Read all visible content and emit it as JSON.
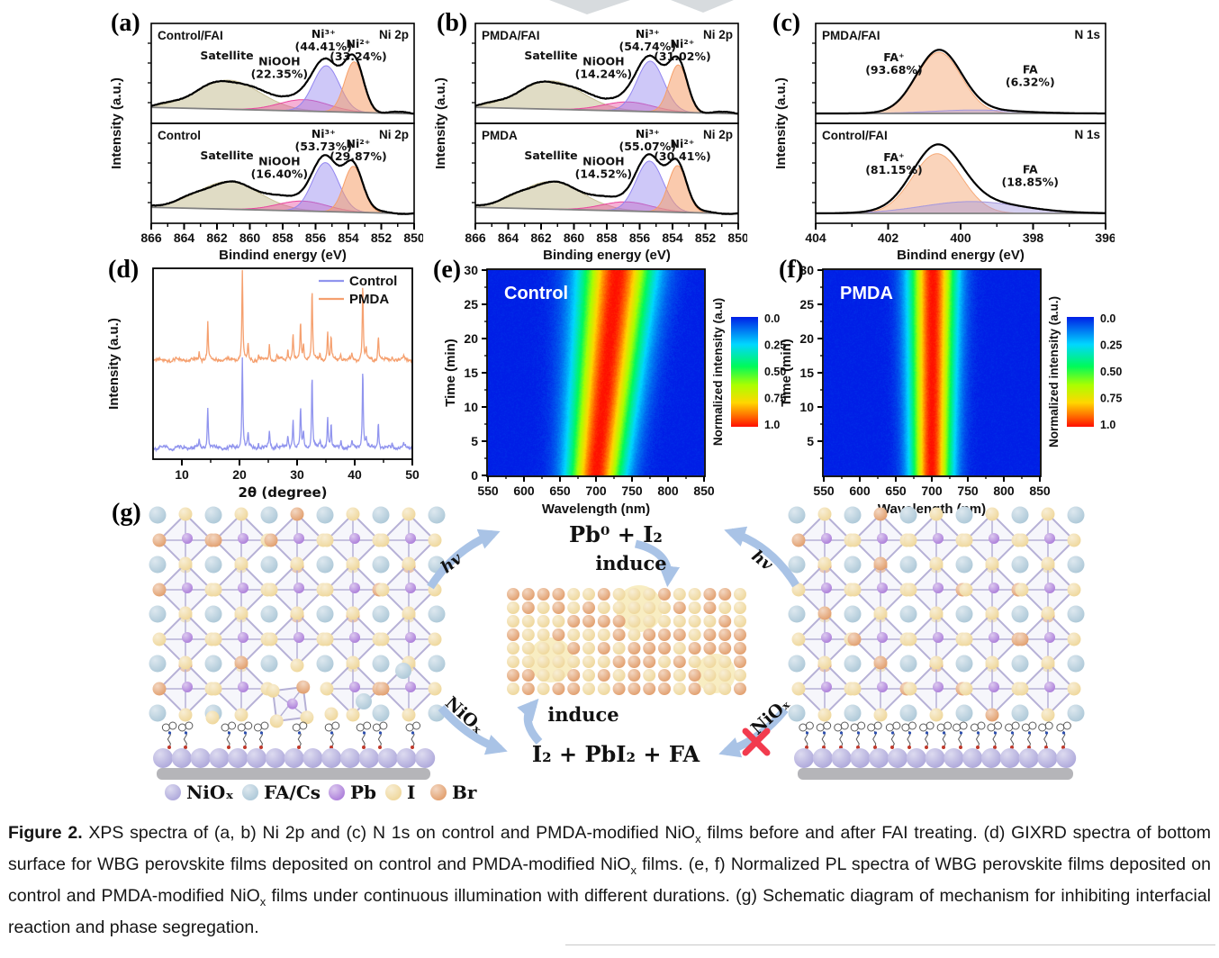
{
  "colors": {
    "satellite_fill": "#c7bf95",
    "niooh_fill": "#e9469e",
    "ni3_fill": "#9285f0",
    "ni2_fill": "#f69f69",
    "fa_plus_fill": "#f6aa78",
    "fa_fill": "#a497de",
    "envelope": "#000000",
    "baseline": "#808080",
    "control_trace": "#9094ee",
    "pmda_trace": "#f5a06f",
    "arrow": "#a9c3e6",
    "cross": "#f23b4e",
    "sphere_niox": "#aaa4d9",
    "sphere_facs": "#aac6d6",
    "sphere_pb": "#a878d8",
    "sphere_i": "#eed596",
    "sphere_br": "#e09a66",
    "substrate": "#b5b5b9",
    "halo": "#f8edc2"
  },
  "xps_a": {
    "label": "(a)",
    "ylabel": "Intensity (a.u.)",
    "xlabel": "Bindind energy (eV)",
    "region": "Ni 2p",
    "axis": {
      "min": 866,
      "max": 850,
      "ticks": [
        866,
        864,
        862,
        860,
        858,
        856,
        854,
        852,
        850
      ]
    },
    "plots": [
      {
        "sample": "Control/FAI",
        "ann": {
          "satellite": [
            "Satellite"
          ],
          "niooh": [
            "NiOOH",
            "(22.35%)"
          ],
          "ni3": [
            "Ni³⁺",
            "(44.41%)"
          ],
          "ni2": [
            "Ni²⁺",
            "(33.24%)"
          ]
        },
        "peaks": {
          "satellite": {
            "c": 861.3,
            "s": 1.9,
            "h": 0.38
          },
          "niooh": {
            "c": 856.7,
            "s": 1.5,
            "h": 0.15
          },
          "ni3": {
            "c": 855.35,
            "s": 0.8,
            "h": 0.6
          },
          "ni2": {
            "c": 853.65,
            "s": 0.58,
            "h": 0.66
          }
        }
      },
      {
        "sample": "Control",
        "ann": {
          "satellite": [
            "Satellite"
          ],
          "niooh": [
            "NiOOH",
            "(16.40%)"
          ],
          "ni3": [
            "Ni³⁺",
            "(53.73%)"
          ],
          "ni2": [
            "Ni²⁺",
            "(29.87%)"
          ]
        },
        "peaks": {
          "satellite": {
            "c": 861.3,
            "s": 1.9,
            "h": 0.36
          },
          "niooh": {
            "c": 856.8,
            "s": 1.5,
            "h": 0.13
          },
          "ni3": {
            "c": 855.4,
            "s": 0.8,
            "h": 0.64
          },
          "ni2": {
            "c": 853.7,
            "s": 0.58,
            "h": 0.6
          }
        }
      }
    ]
  },
  "xps_b": {
    "label": "(b)",
    "ylabel": "Intensity (a.u.)",
    "xlabel": "Binding energy (eV)",
    "region": "Ni 2p",
    "axis": {
      "min": 866,
      "max": 850,
      "ticks": [
        866,
        864,
        862,
        860,
        858,
        856,
        854,
        852,
        850
      ]
    },
    "plots": [
      {
        "sample": "PMDA/FAI",
        "ann": {
          "satellite": [
            "Satellite"
          ],
          "niooh": [
            "NiOOH",
            "(14.24%)"
          ],
          "ni3": [
            "Ni³⁺",
            "(54.74%)"
          ],
          "ni2": [
            "Ni²⁺",
            "(31.02%)"
          ]
        },
        "peaks": {
          "satellite": {
            "c": 861.4,
            "s": 1.9,
            "h": 0.37
          },
          "niooh": {
            "c": 856.7,
            "s": 1.5,
            "h": 0.12
          },
          "ni3": {
            "c": 855.35,
            "s": 0.82,
            "h": 0.66
          },
          "ni2": {
            "c": 853.65,
            "s": 0.56,
            "h": 0.62
          }
        }
      },
      {
        "sample": "PMDA",
        "ann": {
          "satellite": [
            "Satellite"
          ],
          "niooh": [
            "NiOOH",
            "(14.52%)"
          ],
          "ni3": [
            "Ni³⁺",
            "(55.07%)"
          ],
          "ni2": [
            "Ni²⁺",
            "(30.41%)"
          ]
        },
        "peaks": {
          "satellite": {
            "c": 861.4,
            "s": 1.9,
            "h": 0.36
          },
          "niooh": {
            "c": 856.8,
            "s": 1.5,
            "h": 0.12
          },
          "ni3": {
            "c": 855.4,
            "s": 0.82,
            "h": 0.66
          },
          "ni2": {
            "c": 853.7,
            "s": 0.56,
            "h": 0.61
          }
        }
      }
    ]
  },
  "xps_c": {
    "label": "(c)",
    "ylabel": "Intensity (a.u.)",
    "xlabel": "Bindind energy (eV)",
    "region": "N 1s",
    "axis": {
      "min": 404,
      "max": 396,
      "ticks": [
        404,
        402,
        400,
        398,
        396
      ]
    },
    "plots": [
      {
        "sample": "PMDA/FAI",
        "ann": {
          "fap": [
            "FA⁺",
            "(93.68%)"
          ],
          "fa": [
            "FA",
            "(6.32%)"
          ]
        },
        "peaks": {
          "fap": {
            "c": 400.6,
            "s": 0.62,
            "h": 0.8
          },
          "fa": {
            "c": 399.6,
            "s": 1.2,
            "h": 0.045
          }
        }
      },
      {
        "sample": "Control/FAI",
        "ann": {
          "fap": [
            "FA⁺",
            "(81.15%)"
          ],
          "fa": [
            "FA",
            "(18.85%)"
          ]
        },
        "peaks": {
          "fap": {
            "c": 400.65,
            "s": 0.68,
            "h": 0.78
          },
          "fa": {
            "c": 399.7,
            "s": 1.35,
            "h": 0.155
          }
        }
      }
    ]
  },
  "xrd": {
    "label": "(d)",
    "ylabel": "Intensity (a.u.)",
    "xlabel": "2θ (degree)",
    "axis": {
      "min": 5,
      "max": 50,
      "ticks": [
        10,
        20,
        30,
        40,
        50
      ]
    },
    "series": [
      {
        "name": "Control",
        "offset": 0.06,
        "scale": 0.48
      },
      {
        "name": "PMDA",
        "offset": 0.52,
        "scale": 0.46
      }
    ],
    "peaks": [
      [
        13.0,
        0.08
      ],
      [
        14.5,
        0.45
      ],
      [
        20.5,
        1.0
      ],
      [
        21.5,
        0.16
      ],
      [
        23.3,
        0.06
      ],
      [
        25.2,
        0.17
      ],
      [
        26.5,
        0.05
      ],
      [
        28.4,
        0.12
      ],
      [
        29.3,
        0.3
      ],
      [
        30.6,
        0.42
      ],
      [
        31.1,
        0.18
      ],
      [
        32.6,
        0.8
      ],
      [
        34.0,
        0.07
      ],
      [
        35.3,
        0.33
      ],
      [
        35.9,
        0.25
      ],
      [
        37.6,
        0.08
      ],
      [
        39.5,
        0.06
      ],
      [
        41.4,
        0.85
      ],
      [
        42.0,
        0.12
      ],
      [
        44.1,
        0.28
      ],
      [
        46.5,
        0.05
      ],
      [
        48.5,
        0.05
      ]
    ]
  },
  "pl_e": {
    "label": "(e)",
    "title": "Control",
    "ylabel": "Time (min)",
    "xlabel": "Wavelength (nm)",
    "axis": {
      "min": 550,
      "max": 850,
      "ticks": [
        550,
        600,
        650,
        700,
        750,
        800,
        850
      ]
    },
    "yticks": [
      0,
      5,
      10,
      15,
      20,
      25,
      30
    ],
    "colorbar": {
      "title": "Normalized intensity (a.u)",
      "ticks": [
        "0.0",
        "0.25",
        "0.50",
        "0.75",
        "1.0"
      ]
    },
    "band": {
      "c0": 699,
      "c1": 729,
      "s0": 26,
      "s1": 34
    }
  },
  "pl_f": {
    "label": "(f)",
    "title": "PMDA",
    "ylabel": "Time (min)",
    "xlabel": "Wavelength (nm)",
    "axis": {
      "min": 550,
      "max": 850,
      "ticks": [
        550,
        600,
        650,
        700,
        750,
        800,
        850
      ]
    },
    "yticks": [
      5,
      10,
      15,
      20,
      25,
      30
    ],
    "colorbar": {
      "title": "Normalized intensity (a.u.)",
      "ticks": [
        "0.0",
        "0.25",
        "0.50",
        "0.75",
        "1.0"
      ]
    },
    "band": {
      "c0": 699,
      "c1": 701,
      "s0": 19,
      "s1": 22
    }
  },
  "schematic": {
    "label": "(g)",
    "hv_left": "hv",
    "hv_right": "hv",
    "top_reaction": "Pb⁰  +  I₂",
    "induce_top": "induce",
    "induce_bottom": "induce",
    "bottom_reaction": "I₂  +  PbI₂ +  FA",
    "niox_left": "NiOₓ",
    "niox_right": "NiOₓ",
    "legend": [
      {
        "name": "NiOₓ",
        "color": "#aaa4d9"
      },
      {
        "name": "FA/Cs",
        "color": "#aac6d6"
      },
      {
        "name": "Pb",
        "color": "#a878d8"
      },
      {
        "name": "I",
        "color": "#eed596"
      },
      {
        "name": "Br",
        "color": "#e09a66"
      }
    ]
  },
  "caption": {
    "segments": [
      {
        "t": "Figure 2."
      },
      {
        "t": " XPS spectra of (a, b) Ni 2p and (c) N 1s on control and PMDA-modified NiO"
      },
      {
        "t": "x"
      },
      {
        "t": " films before and after FAI treating. (d) GIXRD spectra of bottom surface for WBG perovskite films deposited on control and PMDA-modified NiO"
      },
      {
        "t": "x"
      },
      {
        "t": " films. (e, f) Normalized PL spectra of WBG perovskite films deposited on control and PMDA-modified NiO"
      },
      {
        "t": "x"
      },
      {
        "t": " films under continuous illumination with different durations. (g) Schematic diagram of mechanism for inhibiting interfacial reaction and phase segregation."
      }
    ]
  }
}
